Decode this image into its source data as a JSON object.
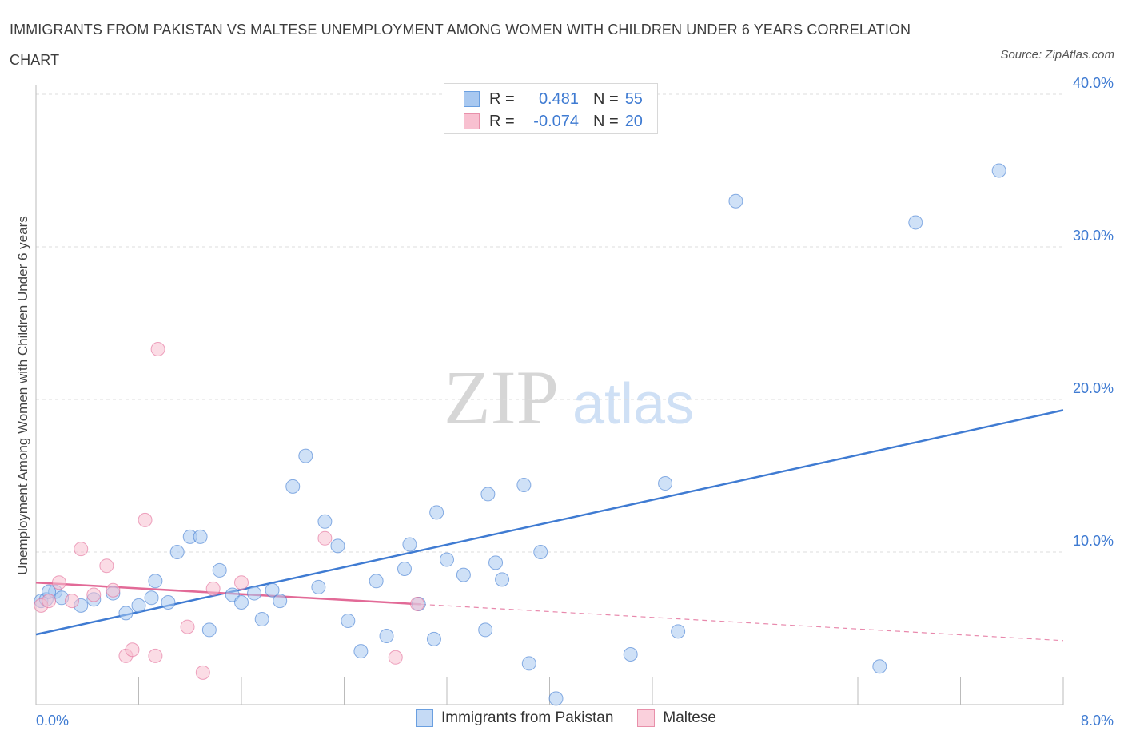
{
  "header": {
    "title": "IMMIGRANTS FROM PAKISTAN VS MALTESE UNEMPLOYMENT AMONG WOMEN WITH CHILDREN UNDER 6 YEARS CORRELATION CHART",
    "source": "Source: ZipAtlas.com"
  },
  "watermark": {
    "zip": "ZIP",
    "atlas": "atlas"
  },
  "legend": {
    "rows": [
      {
        "r_label": "R =",
        "r_value": "0.481",
        "n_label": "N =",
        "n_value": "55",
        "color": "#a8c8f0",
        "border": "#6a9fe0"
      },
      {
        "r_label": "R =",
        "r_value": "-0.074",
        "n_label": "N =",
        "n_value": "20",
        "color": "#f8c0d0",
        "border": "#e890aa"
      }
    ]
  },
  "bottom_legend": [
    {
      "label": "Immigrants from Pakistan",
      "color": "#a8c8f0",
      "border": "#6a9fe0"
    },
    {
      "label": "Maltese",
      "color": "#f8c0d0",
      "border": "#e890aa"
    }
  ],
  "chart_data": {
    "type": "scatter",
    "title": "IMMIGRANTS FROM PAKISTAN VS MALTESE UNEMPLOYMENT AMONG WOMEN WITH CHILDREN UNDER 6 YEARS CORRELATION CHART",
    "xlabel": "",
    "ylabel": "Unemployment Among Women with Children Under 6 years",
    "xlim": [
      0,
      8
    ],
    "ylim": [
      0,
      40
    ],
    "x_tick_labels": [
      "0.0%",
      "8.0%"
    ],
    "y_ticks": [
      10,
      20,
      30,
      40
    ],
    "y_tick_labels": [
      "10.0%",
      "20.0%",
      "30.0%",
      "40.0%"
    ],
    "grid": "horizontal dashed",
    "legend_position": "top-center",
    "series": [
      {
        "name": "Immigrants from Pakistan",
        "color": "#3f7bd2",
        "fill": "#a8c8f0",
        "trend": {
          "x": [
            0,
            8
          ],
          "y": [
            4.6,
            19.3
          ]
        },
        "points": [
          [
            0.04,
            6.8
          ],
          [
            0.08,
            6.9
          ],
          [
            0.15,
            7.4
          ],
          [
            0.2,
            7.0
          ],
          [
            0.35,
            6.5
          ],
          [
            0.45,
            6.9
          ],
          [
            0.6,
            7.3
          ],
          [
            0.7,
            6.0
          ],
          [
            0.8,
            6.5
          ],
          [
            0.9,
            7.0
          ],
          [
            0.93,
            8.1
          ],
          [
            1.03,
            6.7
          ],
          [
            1.1,
            10.0
          ],
          [
            1.2,
            11.0
          ],
          [
            1.28,
            11.0
          ],
          [
            1.35,
            4.9
          ],
          [
            1.43,
            8.8
          ],
          [
            1.53,
            7.2
          ],
          [
            1.6,
            6.7
          ],
          [
            1.7,
            7.3
          ],
          [
            1.76,
            5.6
          ],
          [
            1.84,
            7.5
          ],
          [
            1.9,
            6.8
          ],
          [
            2.0,
            14.3
          ],
          [
            2.1,
            16.3
          ],
          [
            2.2,
            7.7
          ],
          [
            2.25,
            12.0
          ],
          [
            2.35,
            10.4
          ],
          [
            2.43,
            5.5
          ],
          [
            2.53,
            3.5
          ],
          [
            2.65,
            8.1
          ],
          [
            2.73,
            4.5
          ],
          [
            2.87,
            8.9
          ],
          [
            2.91,
            10.5
          ],
          [
            2.98,
            6.6
          ],
          [
            3.1,
            4.3
          ],
          [
            3.12,
            12.6
          ],
          [
            3.2,
            9.5
          ],
          [
            3.33,
            8.5
          ],
          [
            3.5,
            4.9
          ],
          [
            3.58,
            9.3
          ],
          [
            3.63,
            8.2
          ],
          [
            3.8,
            14.4
          ],
          [
            3.84,
            2.7
          ],
          [
            3.93,
            10.0
          ],
          [
            4.05,
            0.4
          ],
          [
            4.63,
            3.3
          ],
          [
            4.9,
            14.5
          ],
          [
            5.0,
            4.8
          ],
          [
            5.45,
            33.0
          ],
          [
            6.57,
            2.5
          ],
          [
            6.85,
            31.6
          ],
          [
            7.5,
            35.0
          ],
          [
            3.52,
            13.8
          ],
          [
            0.1,
            7.4
          ]
        ]
      },
      {
        "name": "Maltese",
        "color": "#e26a97",
        "fill": "#f8c0d0",
        "trend": {
          "x": [
            0,
            8
          ],
          "y": [
            8.0,
            4.2
          ],
          "solid_until_x": 3.0
        },
        "points": [
          [
            0.04,
            6.5
          ],
          [
            0.1,
            6.8
          ],
          [
            0.18,
            8.0
          ],
          [
            0.28,
            6.8
          ],
          [
            0.35,
            10.2
          ],
          [
            0.45,
            7.2
          ],
          [
            0.55,
            9.1
          ],
          [
            0.6,
            7.5
          ],
          [
            0.7,
            3.2
          ],
          [
            0.75,
            3.6
          ],
          [
            0.85,
            12.1
          ],
          [
            0.93,
            3.2
          ],
          [
            0.95,
            23.3
          ],
          [
            1.18,
            5.1
          ],
          [
            1.3,
            2.1
          ],
          [
            1.38,
            7.6
          ],
          [
            1.6,
            8.0
          ],
          [
            2.25,
            10.9
          ],
          [
            2.8,
            3.1
          ],
          [
            2.97,
            6.6
          ]
        ]
      }
    ]
  }
}
